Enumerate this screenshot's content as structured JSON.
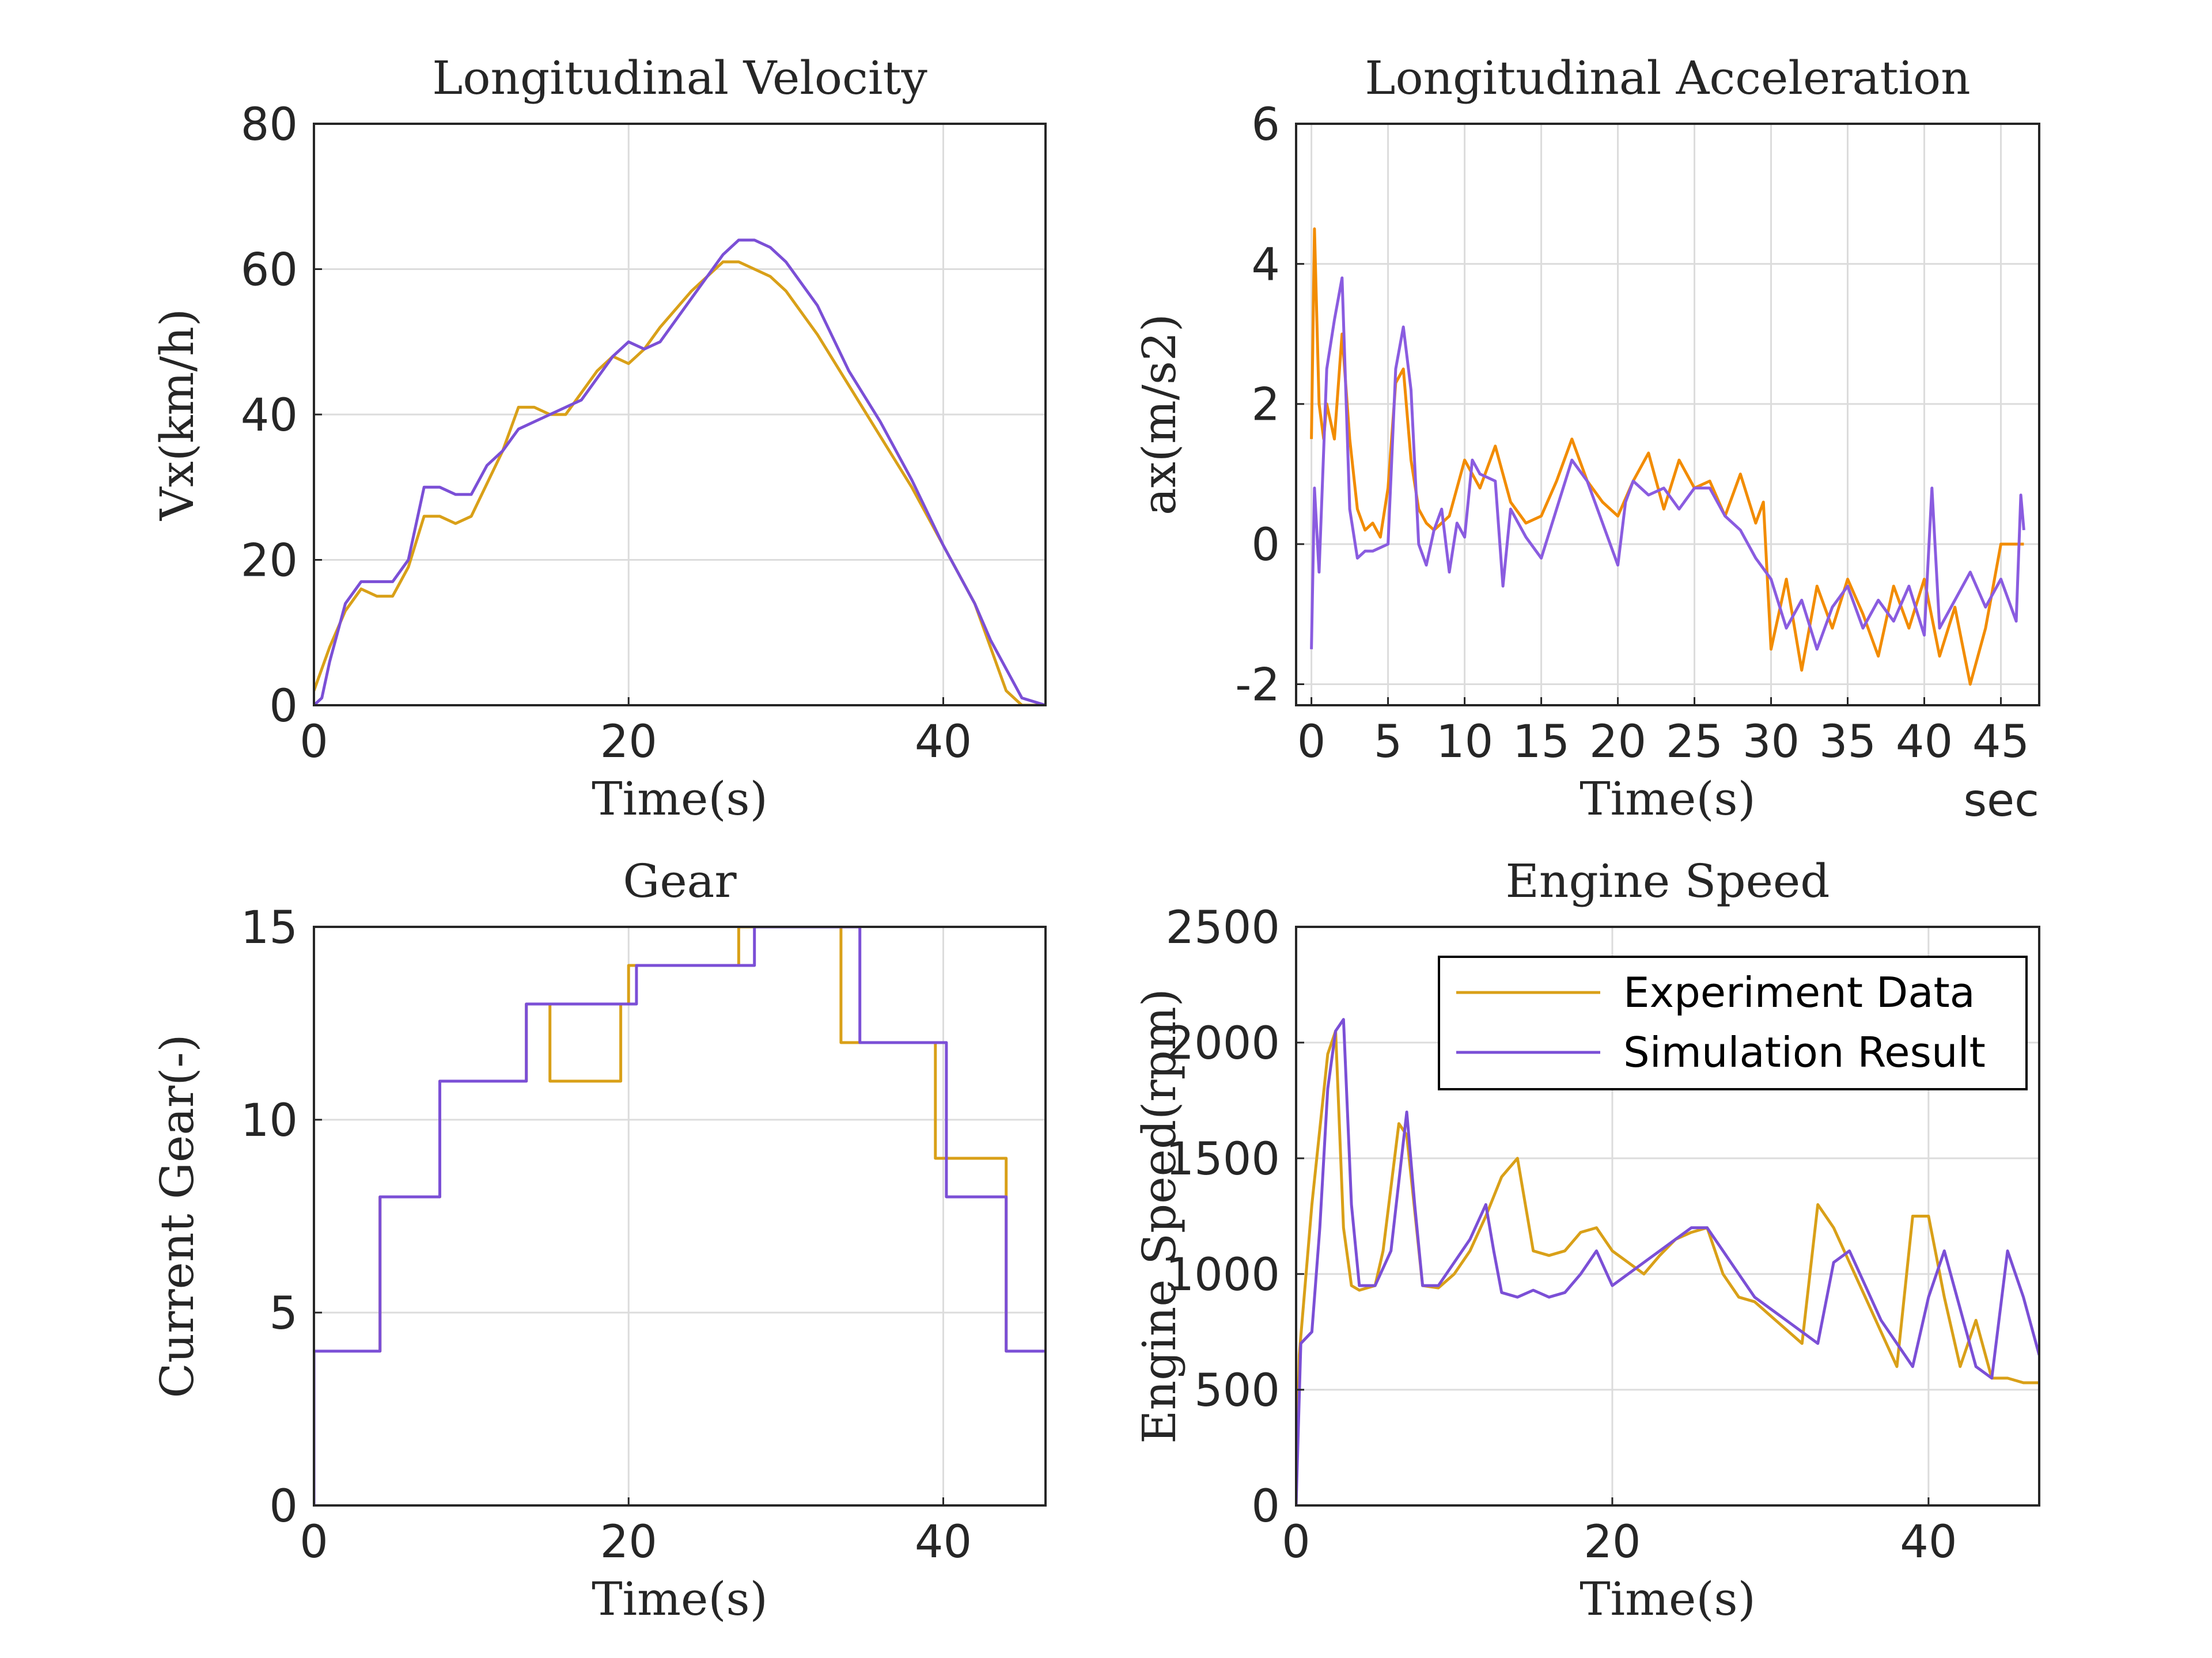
{
  "chart_data": [
    {
      "type": "line",
      "title": "Longitudinal Velocity",
      "xlabel": "Time(s)",
      "ylabel": "Vx(km/h)",
      "xlim": [
        0,
        46.5
      ],
      "ylim": [
        0,
        80
      ],
      "xticks": [
        0,
        20,
        40
      ],
      "yticks": [
        0,
        20,
        40,
        60,
        80
      ],
      "grid": true,
      "series": [
        {
          "name": "Experiment Data",
          "color": "#D9A018",
          "x": [
            0,
            1,
            2,
            3,
            4,
            5,
            6,
            7,
            8,
            9,
            10,
            12,
            13,
            14,
            15,
            16,
            18,
            19,
            20,
            21,
            22,
            24,
            26,
            27,
            28,
            29,
            30,
            32,
            34,
            36,
            38,
            40,
            42,
            43,
            44,
            45,
            46.5
          ],
          "y": [
            2,
            8,
            13,
            16,
            15,
            15,
            19,
            26,
            26,
            25,
            26,
            35,
            41,
            41,
            40,
            40,
            46,
            48,
            47,
            49,
            52,
            57,
            61,
            61,
            60,
            59,
            57,
            51,
            44,
            37,
            30,
            22,
            14,
            8,
            2,
            0,
            0
          ]
        },
        {
          "name": "Simulation Result",
          "color": "#7B4FD6",
          "x": [
            0,
            0.5,
            1,
            2,
            3,
            4,
            5,
            6,
            7,
            8,
            9,
            10,
            11,
            12,
            13,
            14,
            15,
            16,
            17,
            18,
            19,
            20,
            21,
            22,
            24,
            26,
            27,
            28,
            29,
            30,
            32,
            34,
            36,
            38,
            40,
            42,
            43,
            44,
            45,
            46.5
          ],
          "y": [
            0,
            1,
            6,
            14,
            17,
            17,
            17,
            20,
            30,
            30,
            29,
            29,
            33,
            35,
            38,
            39,
            40,
            41,
            42,
            45,
            48,
            50,
            49,
            50,
            56,
            62,
            64,
            64,
            63,
            61,
            55,
            46,
            39,
            31,
            22,
            14,
            9,
            5,
            1,
            0
          ]
        }
      ]
    },
    {
      "type": "line",
      "title": "Longitudinal Acceleration",
      "xlabel": "Time(s)",
      "ylabel": "ax(m/s2)",
      "corner_label": "sec",
      "xlim": [
        -1,
        47.5
      ],
      "ylim": [
        -2.3,
        6
      ],
      "xticks": [
        0,
        5,
        10,
        15,
        20,
        25,
        30,
        35,
        40,
        45
      ],
      "yticks": [
        -2,
        0,
        2,
        4,
        6
      ],
      "grid": true,
      "series": [
        {
          "name": "Experiment Data",
          "color": "#F28C00",
          "x": [
            0,
            0.2,
            0.5,
            0.8,
            1,
            1.5,
            2,
            2.5,
            3,
            3.5,
            4,
            4.5,
            5,
            5.5,
            6,
            6.5,
            7,
            7.5,
            8,
            9,
            10,
            11,
            12,
            13,
            14,
            15,
            16,
            17,
            18,
            19,
            20,
            21,
            22,
            23,
            24,
            25,
            26,
            27,
            28,
            29,
            29.5,
            30,
            31,
            32,
            33,
            34,
            35,
            36,
            37,
            38,
            39,
            40,
            41,
            42,
            43,
            44,
            45,
            46,
            46.5
          ],
          "y": [
            1.5,
            4.5,
            2,
            1.5,
            2,
            1.5,
            3,
            1.5,
            0.5,
            0.2,
            0.3,
            0.1,
            0.8,
            2.3,
            2.5,
            1.2,
            0.5,
            0.3,
            0.2,
            0.4,
            1.2,
            0.8,
            1.4,
            0.6,
            0.3,
            0.4,
            0.9,
            1.5,
            0.9,
            0.6,
            0.4,
            0.9,
            1.3,
            0.5,
            1.2,
            0.8,
            0.9,
            0.4,
            1.0,
            0.3,
            0.6,
            -1.5,
            -0.5,
            -1.8,
            -0.6,
            -1.2,
            -0.5,
            -1.0,
            -1.6,
            -0.6,
            -1.2,
            -0.5,
            -1.6,
            -0.9,
            -2.0,
            -1.2,
            0,
            0,
            0
          ]
        },
        {
          "name": "Simulation Result",
          "color": "#8A5CE0",
          "x": [
            0,
            0.2,
            0.5,
            1,
            1.5,
            2,
            2.5,
            3,
            3.5,
            4,
            5,
            5.5,
            6,
            6.5,
            7,
            7.5,
            8,
            8.5,
            9,
            9.5,
            10,
            10.5,
            11,
            12,
            12.5,
            13,
            14,
            15,
            16,
            17,
            18,
            19,
            20,
            20.5,
            21,
            22,
            23,
            24,
            25,
            26,
            27,
            28,
            29,
            30,
            31,
            32,
            33,
            34,
            35,
            36,
            37,
            38,
            39,
            40,
            40.5,
            41,
            42,
            43,
            44,
            45,
            46,
            46.3,
            46.5
          ],
          "y": [
            -1.5,
            0.8,
            -0.4,
            2.5,
            3.2,
            3.8,
            0.5,
            -0.2,
            -0.1,
            -0.1,
            0,
            2.5,
            3.1,
            2.2,
            0,
            -0.3,
            0.2,
            0.5,
            -0.4,
            0.3,
            0.1,
            1.2,
            1.0,
            0.9,
            -0.6,
            0.5,
            0.1,
            -0.2,
            0.5,
            1.2,
            0.9,
            0.3,
            -0.3,
            0.6,
            0.9,
            0.7,
            0.8,
            0.5,
            0.8,
            0.8,
            0.4,
            0.2,
            -0.2,
            -0.5,
            -1.2,
            -0.8,
            -1.5,
            -0.9,
            -0.6,
            -1.2,
            -0.8,
            -1.1,
            -0.6,
            -1.3,
            0.8,
            -1.2,
            -0.8,
            -0.4,
            -0.9,
            -0.5,
            -1.1,
            0.7,
            0.2
          ]
        }
      ]
    },
    {
      "type": "line",
      "title": "Gear",
      "xlabel": "Time(s)",
      "ylabel": "Current Gear(-)",
      "xlim": [
        0,
        46.5
      ],
      "ylim": [
        0,
        15
      ],
      "xticks": [
        0,
        20,
        40
      ],
      "yticks": [
        0,
        5,
        10,
        15
      ],
      "grid": true,
      "series": [
        {
          "name": "Experiment Data",
          "color": "#D9A018",
          "x": [
            0,
            0,
            4.2,
            4.2,
            8,
            8,
            13.5,
            13.5,
            15,
            15,
            19.5,
            19.5,
            20,
            20,
            27,
            27,
            28,
            28,
            33.5,
            33.5,
            39.5,
            39.5,
            44,
            44,
            46.5
          ],
          "y": [
            0,
            4,
            4,
            8,
            8,
            11,
            11,
            13,
            13,
            11,
            11,
            13,
            13,
            14,
            14,
            15,
            15,
            15,
            15,
            12,
            12,
            9,
            9,
            4,
            4
          ]
        },
        {
          "name": "Simulation Result",
          "color": "#7B4FD6",
          "x": [
            0,
            0,
            4.2,
            4.2,
            8,
            8,
            12.7,
            12.7,
            13.5,
            13.5,
            20.5,
            20.5,
            28,
            28,
            34.7,
            34.7,
            40.2,
            40.2,
            43.5,
            43.5,
            44,
            44,
            46.5
          ],
          "y": [
            0,
            4,
            4,
            8,
            8,
            11,
            11,
            11,
            11,
            13,
            13,
            14,
            14,
            15,
            15,
            12,
            12,
            8,
            8,
            8,
            8,
            4,
            4
          ]
        }
      ]
    },
    {
      "type": "line",
      "title": "Engine Speed",
      "xlabel": "Time(s)",
      "ylabel": "Engine Speed(rpm)",
      "xlim": [
        0,
        47
      ],
      "ylim": [
        0,
        2500
      ],
      "xticks": [
        0,
        20,
        40
      ],
      "yticks": [
        0,
        500,
        1000,
        1500,
        2000,
        2500
      ],
      "grid": true,
      "legend": {
        "position": "top-right",
        "entries": [
          "Experiment Data",
          "Simulation Result"
        ]
      },
      "series": [
        {
          "name": "Experiment Data",
          "color": "#D9A018",
          "x": [
            0,
            0.2,
            1,
            2,
            2.5,
            3,
            3.5,
            4,
            5,
            5.5,
            6.5,
            7,
            8,
            9,
            10,
            11,
            12,
            13,
            14,
            15,
            16,
            17,
            18,
            19,
            20,
            21,
            22,
            23,
            24,
            25,
            26,
            27,
            28,
            29,
            30,
            31,
            32,
            33,
            34,
            35,
            36,
            37,
            38,
            39,
            40,
            41,
            42,
            43,
            44,
            45,
            46,
            47
          ],
          "y": [
            0,
            650,
            1300,
            1950,
            2050,
            1200,
            950,
            930,
            950,
            1100,
            1650,
            1600,
            950,
            940,
            1000,
            1100,
            1250,
            1420,
            1500,
            1100,
            1080,
            1100,
            1180,
            1200,
            1100,
            1050,
            1000,
            1080,
            1150,
            1180,
            1200,
            1000,
            900,
            880,
            820,
            760,
            700,
            1300,
            1200,
            1050,
            900,
            750,
            600,
            1250,
            1250,
            900,
            600,
            800,
            550,
            550,
            530,
            530
          ]
        },
        {
          "name": "Simulation Result",
          "color": "#7B4FD6",
          "x": [
            0,
            0.3,
            1,
            1.5,
            2,
            2.5,
            3,
            3.5,
            4,
            5,
            6,
            7,
            7.5,
            8,
            9,
            10,
            11,
            12,
            12.5,
            13,
            14,
            15,
            16,
            17,
            18,
            19,
            20,
            21,
            22,
            23,
            24,
            25,
            26,
            27,
            28,
            29,
            30,
            31,
            32,
            33,
            34,
            35,
            36,
            37,
            38,
            39,
            40,
            41,
            42,
            43,
            44,
            45,
            46,
            47
          ],
          "y": [
            0,
            700,
            750,
            1200,
            1800,
            2050,
            2100,
            1300,
            950,
            950,
            1100,
            1700,
            1300,
            950,
            950,
            1050,
            1150,
            1300,
            1100,
            920,
            900,
            930,
            900,
            920,
            1000,
            1100,
            950,
            1000,
            1050,
            1100,
            1150,
            1200,
            1200,
            1100,
            1000,
            900,
            850,
            800,
            750,
            700,
            1050,
            1100,
            950,
            800,
            700,
            600,
            900,
            1100,
            850,
            600,
            550,
            1100,
            900,
            650
          ]
        }
      ]
    }
  ]
}
